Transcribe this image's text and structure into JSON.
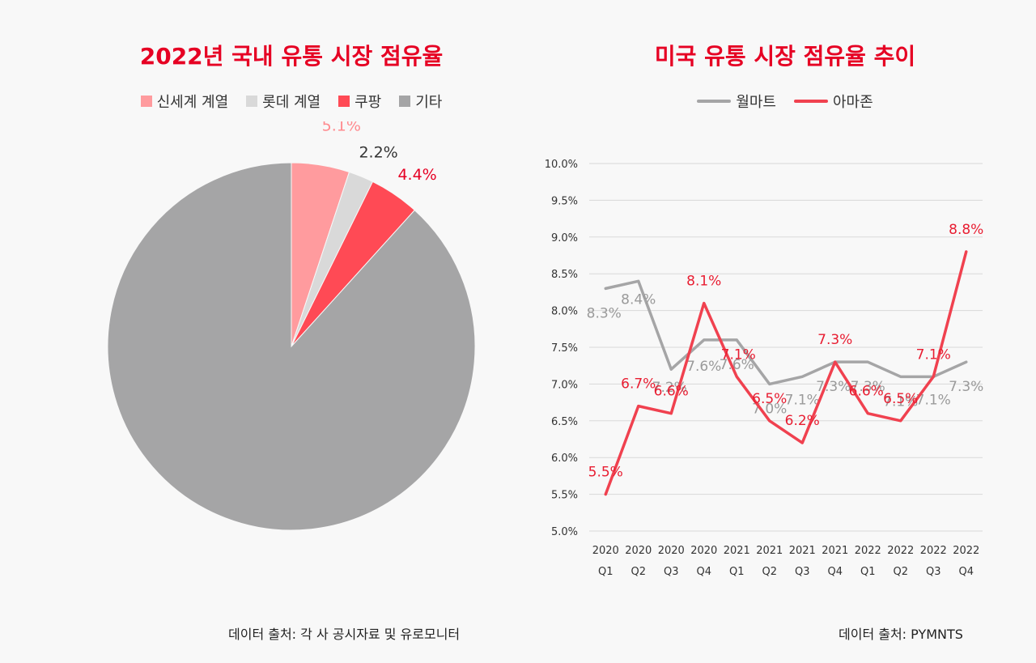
{
  "left": {
    "title": "2022년 국내 유통 시장 점유율",
    "source": "데이터 출처: 각 사 공시자료 및  유로모니터"
  },
  "right": {
    "title": "미국 유통 시장 점유율 추이",
    "source": "데이터 출처: PYMNTS"
  },
  "chart_data": [
    {
      "type": "pie",
      "title": "2022년 국내 유통 시장 점유율",
      "slices": [
        {
          "label": "신세계 계열",
          "value": 5.1,
          "display": "5.1%",
          "color": "#ff9b9e",
          "label_color": "#ff8a8e"
        },
        {
          "label": "롯데 계열",
          "value": 2.2,
          "display": "2.2%",
          "color": "#d9d9d9",
          "label_color": "#333333"
        },
        {
          "label": "쿠팡",
          "value": 4.4,
          "display": "4.4%",
          "color": "#ff4a55",
          "label_color": "#e60023"
        },
        {
          "label": "기타",
          "value": 88.3,
          "display": "",
          "color": "#a5a5a6",
          "label_color": "#888888"
        }
      ],
      "legend_position": "top"
    },
    {
      "type": "line",
      "title": "미국 유통 시장 점유율 추이",
      "categories": [
        [
          "2020",
          "Q1"
        ],
        [
          "2020",
          "Q2"
        ],
        [
          "2020",
          "Q3"
        ],
        [
          "2020",
          "Q4"
        ],
        [
          "2021",
          "Q1"
        ],
        [
          "2021",
          "Q2"
        ],
        [
          "2021",
          "Q3"
        ],
        [
          "2021",
          "Q4"
        ],
        [
          "2022",
          "Q1"
        ],
        [
          "2022",
          "Q2"
        ],
        [
          "2022",
          "Q3"
        ],
        [
          "2022",
          "Q4"
        ]
      ],
      "series": [
        {
          "name": "월마트",
          "color": "#a5a5a6",
          "values": [
            8.3,
            8.4,
            7.2,
            7.6,
            7.6,
            7.0,
            7.1,
            7.3,
            7.3,
            7.1,
            7.1,
            7.3
          ],
          "labels": [
            "8.3%",
            "8.4%",
            "7.2%",
            "7.6%",
            "7.6%",
            "7.0%",
            "7.1%",
            "7.3%",
            "7.3%",
            "7.1%",
            "7.1%",
            "7.3%"
          ]
        },
        {
          "name": "아마존",
          "color": "#f0414f",
          "values": [
            5.5,
            6.7,
            6.6,
            8.1,
            7.1,
            6.5,
            6.2,
            7.3,
            6.6,
            6.5,
            7.1,
            8.8
          ],
          "labels": [
            "5.5%",
            "6.7%",
            "6.6%",
            "8.1%",
            "7.1%",
            "6.5%",
            "6.2%",
            "7.3%",
            "6.6%",
            "6.5%",
            "7.1%",
            "8.8%"
          ]
        }
      ],
      "ylim": [
        5.0,
        10.0
      ],
      "y_ticks": [
        "5.0%",
        "5.5%",
        "6.0%",
        "6.5%",
        "7.0%",
        "7.5%",
        "8.0%",
        "8.5%",
        "9.0%",
        "9.5%",
        "10.0%"
      ],
      "grid": true,
      "legend_position": "top"
    }
  ]
}
